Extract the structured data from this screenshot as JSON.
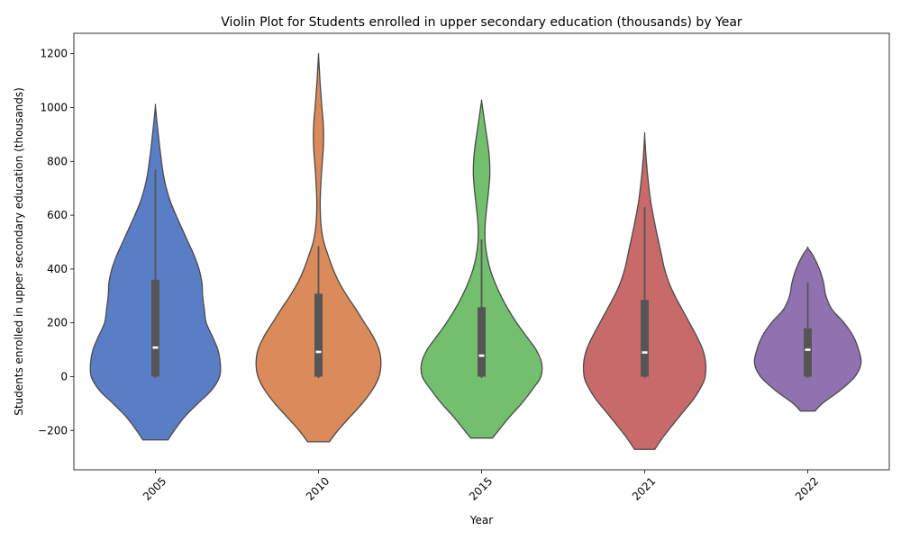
{
  "chart_data": {
    "type": "violin",
    "title": "Violin Plot for Students enrolled in upper secondary education (thousands) by Year",
    "xlabel": "Year",
    "ylabel": "Students enrolled in upper secondary education (thousands)",
    "categories": [
      "2005",
      "2010",
      "2015",
      "2021",
      "2022"
    ],
    "colors": [
      "#5a7ec6",
      "#db8a5a",
      "#72c06d",
      "#c96a6a",
      "#9172b1"
    ],
    "y_ticks": [
      -200,
      0,
      200,
      400,
      600,
      800,
      1000,
      1200
    ],
    "ylim": [
      -350,
      1270
    ],
    "grid": false,
    "violins": [
      {
        "category": "2005",
        "range": [
          -235,
          1005
        ],
        "density": [
          [
            -235,
            52
          ],
          [
            -200,
            78
          ],
          [
            -150,
            120
          ],
          [
            -100,
            175
          ],
          [
            -50,
            232
          ],
          [
            0,
            265
          ],
          [
            50,
            268
          ],
          [
            100,
            258
          ],
          [
            150,
            235
          ],
          [
            200,
            210
          ],
          [
            250,
            202
          ],
          [
            300,
            195
          ],
          [
            350,
            192
          ],
          [
            400,
            180
          ],
          [
            450,
            160
          ],
          [
            500,
            135
          ],
          [
            550,
            110
          ],
          [
            600,
            85
          ],
          [
            650,
            62
          ],
          [
            700,
            45
          ],
          [
            750,
            33
          ],
          [
            800,
            25
          ],
          [
            850,
            18
          ],
          [
            900,
            12
          ],
          [
            950,
            6
          ],
          [
            1005,
            0
          ]
        ],
        "whisker": [
          -5,
          770
        ],
        "box": [
          0,
          360
        ],
        "median": 108
      },
      {
        "category": "2010",
        "range": [
          -242,
          1195
        ],
        "density": [
          [
            -242,
            45
          ],
          [
            -200,
            80
          ],
          [
            -150,
            130
          ],
          [
            -100,
            180
          ],
          [
            -50,
            222
          ],
          [
            0,
            250
          ],
          [
            50,
            258
          ],
          [
            100,
            250
          ],
          [
            150,
            225
          ],
          [
            200,
            190
          ],
          [
            250,
            155
          ],
          [
            300,
            118
          ],
          [
            350,
            85
          ],
          [
            400,
            60
          ],
          [
            450,
            40
          ],
          [
            500,
            22
          ],
          [
            550,
            12
          ],
          [
            600,
            8
          ],
          [
            650,
            7
          ],
          [
            700,
            9
          ],
          [
            750,
            12
          ],
          [
            800,
            16
          ],
          [
            850,
            20
          ],
          [
            900,
            21
          ],
          [
            950,
            19
          ],
          [
            1000,
            14
          ],
          [
            1050,
            10
          ],
          [
            1100,
            6
          ],
          [
            1150,
            3
          ],
          [
            1195,
            0
          ]
        ],
        "whisker": [
          -5,
          485
        ],
        "box": [
          0,
          308
        ],
        "median": 92
      },
      {
        "category": "2015",
        "range": [
          -228,
          1025
        ],
        "density": [
          [
            -228,
            45
          ],
          [
            -200,
            70
          ],
          [
            -150,
            115
          ],
          [
            -100,
            165
          ],
          [
            -50,
            208
          ],
          [
            0,
            245
          ],
          [
            50,
            248
          ],
          [
            100,
            225
          ],
          [
            150,
            185
          ],
          [
            200,
            145
          ],
          [
            250,
            110
          ],
          [
            300,
            80
          ],
          [
            350,
            55
          ],
          [
            400,
            35
          ],
          [
            450,
            22
          ],
          [
            500,
            15
          ],
          [
            550,
            14
          ],
          [
            600,
            18
          ],
          [
            650,
            24
          ],
          [
            700,
            30
          ],
          [
            750,
            34
          ],
          [
            800,
            33
          ],
          [
            850,
            28
          ],
          [
            900,
            20
          ],
          [
            950,
            12
          ],
          [
            1000,
            4
          ],
          [
            1025,
            0
          ]
        ],
        "whisker": [
          -5,
          510
        ],
        "box": [
          0,
          258
        ],
        "median": 78
      },
      {
        "category": "2021",
        "range": [
          -270,
          900
        ],
        "density": [
          [
            -270,
            42
          ],
          [
            -230,
            72
          ],
          [
            -180,
            115
          ],
          [
            -130,
            160
          ],
          [
            -80,
            205
          ],
          [
            -30,
            238
          ],
          [
            0,
            250
          ],
          [
            50,
            252
          ],
          [
            100,
            240
          ],
          [
            150,
            215
          ],
          [
            200,
            185
          ],
          [
            250,
            155
          ],
          [
            300,
            125
          ],
          [
            350,
            100
          ],
          [
            400,
            82
          ],
          [
            450,
            70
          ],
          [
            500,
            58
          ],
          [
            550,
            46
          ],
          [
            600,
            35
          ],
          [
            650,
            25
          ],
          [
            700,
            18
          ],
          [
            750,
            12
          ],
          [
            800,
            7
          ],
          [
            850,
            3
          ],
          [
            900,
            0
          ]
        ],
        "whisker": [
          -5,
          630
        ],
        "box": [
          0,
          285
        ],
        "median": 90
      },
      {
        "category": "2022",
        "range": [
          -128,
          478
        ],
        "density": [
          [
            -128,
            30
          ],
          [
            -100,
            60
          ],
          [
            -50,
            135
          ],
          [
            0,
            195
          ],
          [
            50,
            220
          ],
          [
            100,
            210
          ],
          [
            150,
            188
          ],
          [
            200,
            150
          ],
          [
            250,
            100
          ],
          [
            300,
            75
          ],
          [
            350,
            65
          ],
          [
            400,
            48
          ],
          [
            450,
            22
          ],
          [
            478,
            0
          ]
        ],
        "whisker": [
          -5,
          350
        ],
        "box": [
          0,
          180
        ],
        "median": 100
      }
    ]
  }
}
